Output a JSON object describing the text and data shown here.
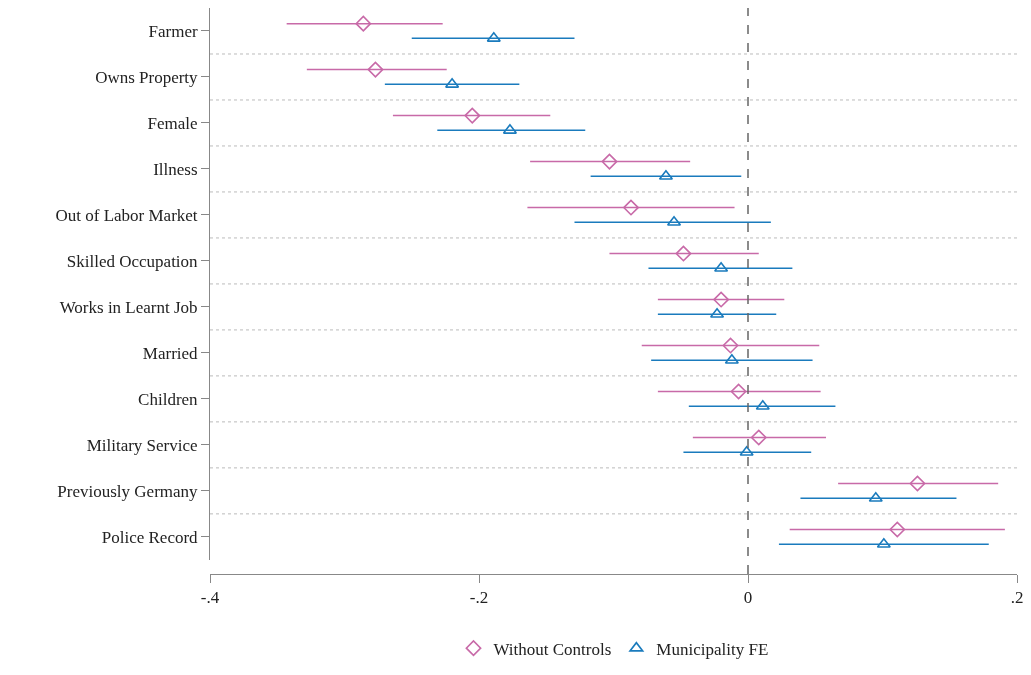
{
  "chart_data": {
    "type": "scatter",
    "orientation": "horizontal",
    "categories": [
      "Farmer",
      "Owns Property",
      "Female",
      "Illness",
      "Out of Labor Market",
      "Skilled Occupation",
      "Works in Learnt Job",
      "Married",
      "Children",
      "Military Service",
      "Previously Germany",
      "Police Record"
    ],
    "series": [
      {
        "name": "Without Controls",
        "color": "#c86aa8",
        "marker": "diamond",
        "values": [
          -0.286,
          -0.277,
          -0.205,
          -0.103,
          -0.087,
          -0.048,
          -0.02,
          -0.013,
          -0.007,
          0.008,
          0.126,
          0.111
        ],
        "errors": [
          [
            -0.343,
            -0.227
          ],
          [
            -0.328,
            -0.224
          ],
          [
            -0.264,
            -0.147
          ],
          [
            -0.162,
            -0.043
          ],
          [
            -0.164,
            -0.01
          ],
          [
            -0.103,
            0.008
          ],
          [
            -0.067,
            0.027
          ],
          [
            -0.079,
            0.053
          ],
          [
            -0.067,
            0.054
          ],
          [
            -0.041,
            0.058
          ],
          [
            0.067,
            0.186
          ],
          [
            0.031,
            0.191
          ]
        ]
      },
      {
        "name": "Municipality FE",
        "color": "#1a7bbd",
        "marker": "triangle",
        "values": [
          -0.189,
          -0.22,
          -0.177,
          -0.061,
          -0.055,
          -0.02,
          -0.023,
          -0.012,
          0.011,
          -0.001,
          0.095,
          0.101
        ],
        "errors": [
          [
            -0.25,
            -0.129
          ],
          [
            -0.27,
            -0.17
          ],
          [
            -0.231,
            -0.121
          ],
          [
            -0.117,
            -0.005
          ],
          [
            -0.129,
            0.017
          ],
          [
            -0.074,
            0.033
          ],
          [
            -0.067,
            0.021
          ],
          [
            -0.072,
            0.048
          ],
          [
            -0.044,
            0.065
          ],
          [
            -0.048,
            0.047
          ],
          [
            0.039,
            0.155
          ],
          [
            0.023,
            0.179
          ]
        ]
      }
    ],
    "xlim": [
      -0.4,
      0.2
    ],
    "xticks": [
      {
        "value": -0.4,
        "label": "-.4"
      },
      {
        "value": -0.2,
        "label": "-.2"
      },
      0,
      {
        "value": 0.2,
        "label": ".2"
      }
    ],
    "ref_lines": [
      {
        "axis": "x",
        "value": 0,
        "color": "#666666",
        "line_style": "dashed"
      }
    ],
    "grid": "y",
    "legend": "bottom"
  }
}
